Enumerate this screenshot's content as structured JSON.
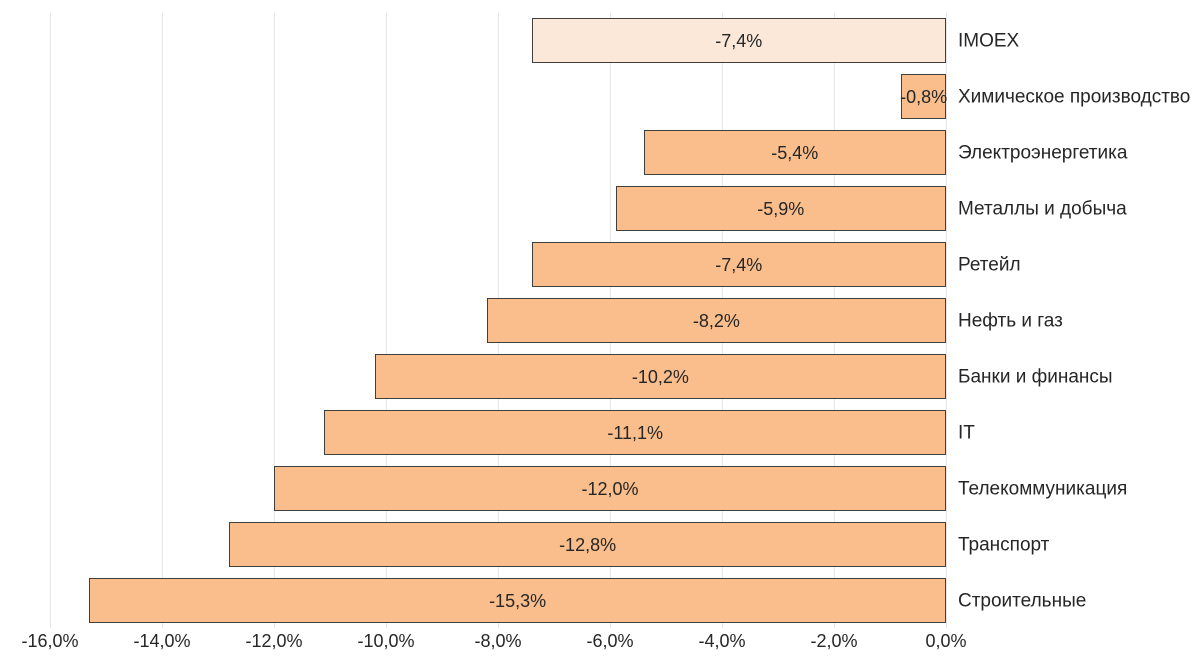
{
  "chart_data": {
    "type": "bar",
    "orientation": "horizontal",
    "categories": [
      "IMOEX",
      "Химическое производство",
      "Электроэнергетика",
      "Металлы и добыча",
      "Ретейл",
      "Нефть и газ",
      "Банки и финансы",
      "IT",
      "Телекоммуникация",
      "Транспорт",
      "Строительные"
    ],
    "values": [
      -7.4,
      -0.8,
      -5.4,
      -5.9,
      -7.4,
      -8.2,
      -10.2,
      -11.1,
      -12.0,
      -12.8,
      -15.3
    ],
    "value_labels": [
      "-7,4%",
      "-0,8%",
      "-5,4%",
      "-5,9%",
      "-7,4%",
      "-8,2%",
      "-10,2%",
      "-11,1%",
      "-12,0%",
      "-12,8%",
      "-15,3%"
    ],
    "x_tick_labels": [
      "-16,0%",
      "-14,0%",
      "-12,0%",
      "-10,0%",
      "-8,0%",
      "-6,0%",
      "-4,0%",
      "-2,0%",
      "0,0%"
    ],
    "xlim": [
      -16,
      0
    ],
    "grid": true,
    "legend_position": "none",
    "highlight_index": 0,
    "colors": {
      "bar_fill": "#F9BE8C",
      "highlight_fill": "#FCE8D8",
      "bar_border": "#3F3F3F",
      "gridline": "#E7E7E7",
      "text": "#262626",
      "background": "#FFFFFF"
    }
  }
}
